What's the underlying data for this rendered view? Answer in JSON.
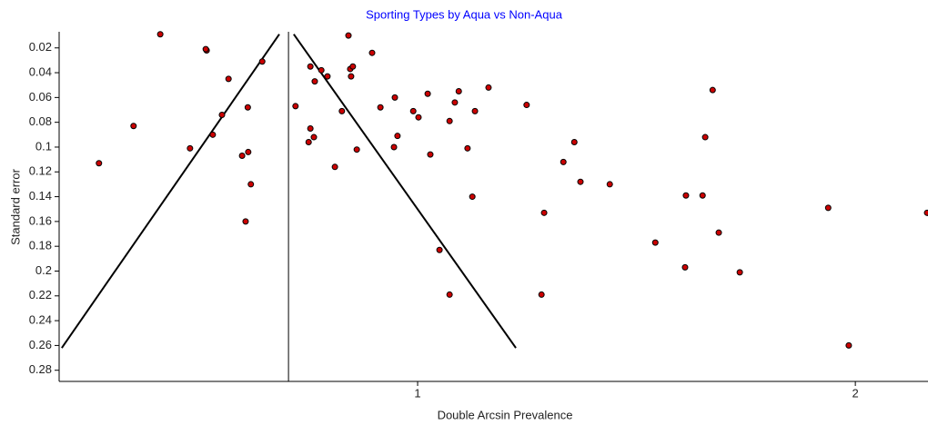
{
  "chart_data": {
    "type": "scatter",
    "title": "Sporting Types by Aqua vs Non-Aqua",
    "title_color": "#0000ff",
    "x_label": "Double Arcsin Prevalence",
    "y_label": "Standard error",
    "xlim": [
      0.181,
      2.166
    ],
    "xticks": [
      1,
      2
    ],
    "ylim": [
      0.007,
      0.289
    ],
    "y_inverted": true,
    "yticks": [
      0.02,
      0.04,
      0.06,
      0.08,
      0.1,
      0.12,
      0.14,
      0.16,
      0.18,
      0.2,
      0.22,
      0.24,
      0.26,
      0.28
    ],
    "point_color": "#cc0000",
    "line_color": "#000000",
    "reference_x": 0.705,
    "funnel_lines": [
      {
        "x": [
          0.187,
          0.684
        ],
        "y": [
          0.262,
          0.009
        ]
      },
      {
        "x": [
          0.717,
          1.2245
        ],
        "y": [
          0.009,
          0.262
        ]
      }
    ],
    "x": [
      0.412,
      0.518,
      0.516,
      0.645,
      0.351,
      0.568,
      0.553,
      0.612,
      0.532,
      0.48,
      0.272,
      0.599,
      0.613,
      0.619,
      0.607,
      0.842,
      0.896,
      0.755,
      0.78,
      0.794,
      0.846,
      0.852,
      0.848,
      0.765,
      0.721,
      0.827,
      0.755,
      0.763,
      0.751,
      0.861,
      0.811,
      0.915,
      0.948,
      0.99,
      1.002,
      1.023,
      1.094,
      1.085,
      1.073,
      1.131,
      1.162,
      0.954,
      0.946,
      1.114,
      1.029,
      1.125,
      1.05,
      1.073,
      1.283,
      1.249,
      1.358,
      1.333,
      1.372,
      1.289,
      1.439,
      1.674,
      1.657,
      1.613,
      1.651,
      1.543,
      1.611,
      1.688,
      1.736,
      1.938,
      1.985,
      2.164
    ],
    "y": [
      0.009,
      0.022,
      0.021,
      0.031,
      0.083,
      0.045,
      0.074,
      0.068,
      0.09,
      0.101,
      0.113,
      0.107,
      0.104,
      0.13,
      0.16,
      0.01,
      0.024,
      0.035,
      0.038,
      0.043,
      0.037,
      0.035,
      0.043,
      0.047,
      0.067,
      0.071,
      0.085,
      0.092,
      0.096,
      0.102,
      0.116,
      0.068,
      0.06,
      0.071,
      0.076,
      0.057,
      0.055,
      0.064,
      0.079,
      0.071,
      0.052,
      0.091,
      0.1,
      0.101,
      0.106,
      0.14,
      0.183,
      0.219,
      0.219,
      0.066,
      0.096,
      0.112,
      0.128,
      0.153,
      0.13,
      0.054,
      0.092,
      0.139,
      0.139,
      0.177,
      0.197,
      0.169,
      0.201,
      0.149,
      0.26,
      0.153
    ]
  }
}
